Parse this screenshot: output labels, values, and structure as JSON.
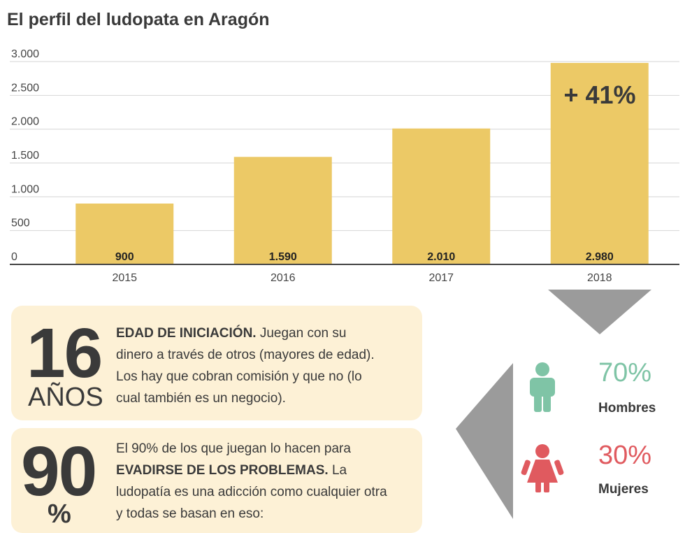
{
  "title": "El perfil del ludopata en Aragón",
  "chart_data": {
    "type": "bar",
    "title": "El perfil del ludopata en Aragón",
    "categories": [
      "2015",
      "2016",
      "2017",
      "2018"
    ],
    "values": [
      900,
      1590,
      2010,
      2980
    ],
    "value_labels": [
      "900",
      "1.590",
      "2.010",
      "2.980"
    ],
    "yticks": [
      0,
      500,
      1000,
      1500,
      2000,
      2500,
      3000
    ],
    "ytick_labels": [
      "0",
      "500",
      "1.000",
      "1.500",
      "2.000",
      "2.500",
      "3.000"
    ],
    "ylim": [
      0,
      3000
    ],
    "grid": true,
    "annotation": "+ 41%",
    "bar_color": "#ecc966",
    "xlabel": "",
    "ylabel": ""
  },
  "age_card": {
    "number": "16",
    "unit": "AÑOS",
    "heading": "EDAD DE INICIACIÓN.",
    "text": " Juegan con su dinero a través de otros (mayores de edad). Los hay que cobran comisión y que no (lo cual también es un negocio)."
  },
  "motive_card": {
    "number": "90",
    "unit": "%",
    "text_before": "El 90% de  los que juegan lo hacen para ",
    "heading": "EVADIRSE DE LOS PROBLEMAS.",
    "text_after": " La ludopatía es una adicción como cualquier otra y  todas se basan en eso:"
  },
  "gender": {
    "men": {
      "pct": "70%",
      "label": "Hombres",
      "color": "#7fc4a6",
      "icon": "man-icon"
    },
    "women": {
      "pct": "30%",
      "label": "Mujeres",
      "color": "#e05a5f",
      "icon": "woman-icon"
    }
  },
  "colors": {
    "card_bg": "#fdf1d6",
    "arrow": "#9b9b9b",
    "text": "#3a3a3a"
  }
}
